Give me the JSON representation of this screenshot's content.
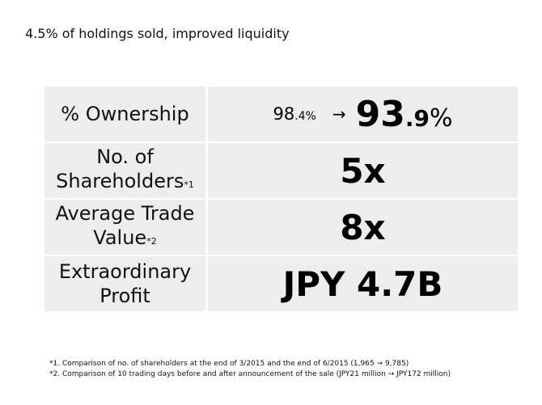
{
  "heading": "4.5% of holdings sold, improved liquidity",
  "rows": [
    {
      "label": "% Ownership",
      "before_int": "98",
      "before_dec": ".4%",
      "arrow": "→",
      "after_int": "93",
      "after_dec": ".9",
      "after_unit": "%"
    },
    {
      "label_line1": "No. of",
      "label_line2": "Shareholders",
      "footnote_mark": "*1",
      "value": "5x"
    },
    {
      "label_line1": "Average Trade",
      "label_line2": "Value",
      "footnote_mark": "*2",
      "value": "8x"
    },
    {
      "label_line1": "Extraordinary",
      "label_line2": "Profit",
      "value": "JPY 4.7B"
    }
  ],
  "footnotes": [
    "*1. Comparison of no. of shareholders at the end of 3/2015 and the end of 6/2015 (1,965 → 9,785)",
    "*2. Comparison of 10 trading days before and after announcement of the sale (JPY21 million → JPY172 million)"
  ]
}
